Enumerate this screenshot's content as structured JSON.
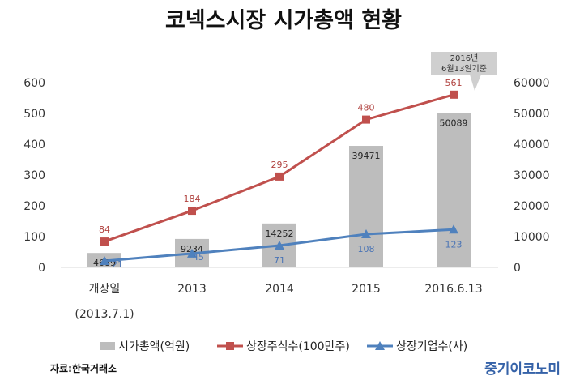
{
  "chart_data": {
    "type": "bar+line",
    "title": "코넥스시장 시가총액 현황",
    "categories": [
      "개장일\n(2013.7.1)",
      "2013",
      "2014",
      "2015",
      "2016.6.13"
    ],
    "category_lines": [
      [
        "개장일",
        "(2013.7.1)"
      ],
      [
        "2013"
      ],
      [
        "2014"
      ],
      [
        "2015"
      ],
      [
        "2016.6.13"
      ]
    ],
    "series": [
      {
        "name": "시가총액(억원)",
        "type": "bar",
        "axis": "right",
        "color": "#bdbdbd",
        "values": [
          4689,
          9234,
          14252,
          39471,
          50089
        ]
      },
      {
        "name": "상장주식수(100만주)",
        "type": "line",
        "axis": "left",
        "marker": "square",
        "color": "#c0504d",
        "values": [
          84,
          184,
          295,
          480,
          561
        ]
      },
      {
        "name": "상장기업수(사)",
        "type": "line",
        "axis": "left",
        "marker": "triangle",
        "color": "#4f81bd",
        "values": [
          21,
          45,
          71,
          108,
          123
        ]
      }
    ],
    "left_axis": {
      "min": 0,
      "max": 600,
      "ticks": [
        "0",
        "100",
        "200",
        "300",
        "400",
        "500",
        "600"
      ]
    },
    "right_axis": {
      "min": 0,
      "max": 60000,
      "ticks": [
        "0",
        "10000",
        "20000",
        "30000",
        "40000",
        "50000",
        "60000"
      ]
    },
    "callout": [
      "2016년",
      "6월13일기준"
    ],
    "legend_position": "bottom",
    "grid": false
  },
  "source": "자료:한국거래소",
  "brand": "중기이코노미"
}
